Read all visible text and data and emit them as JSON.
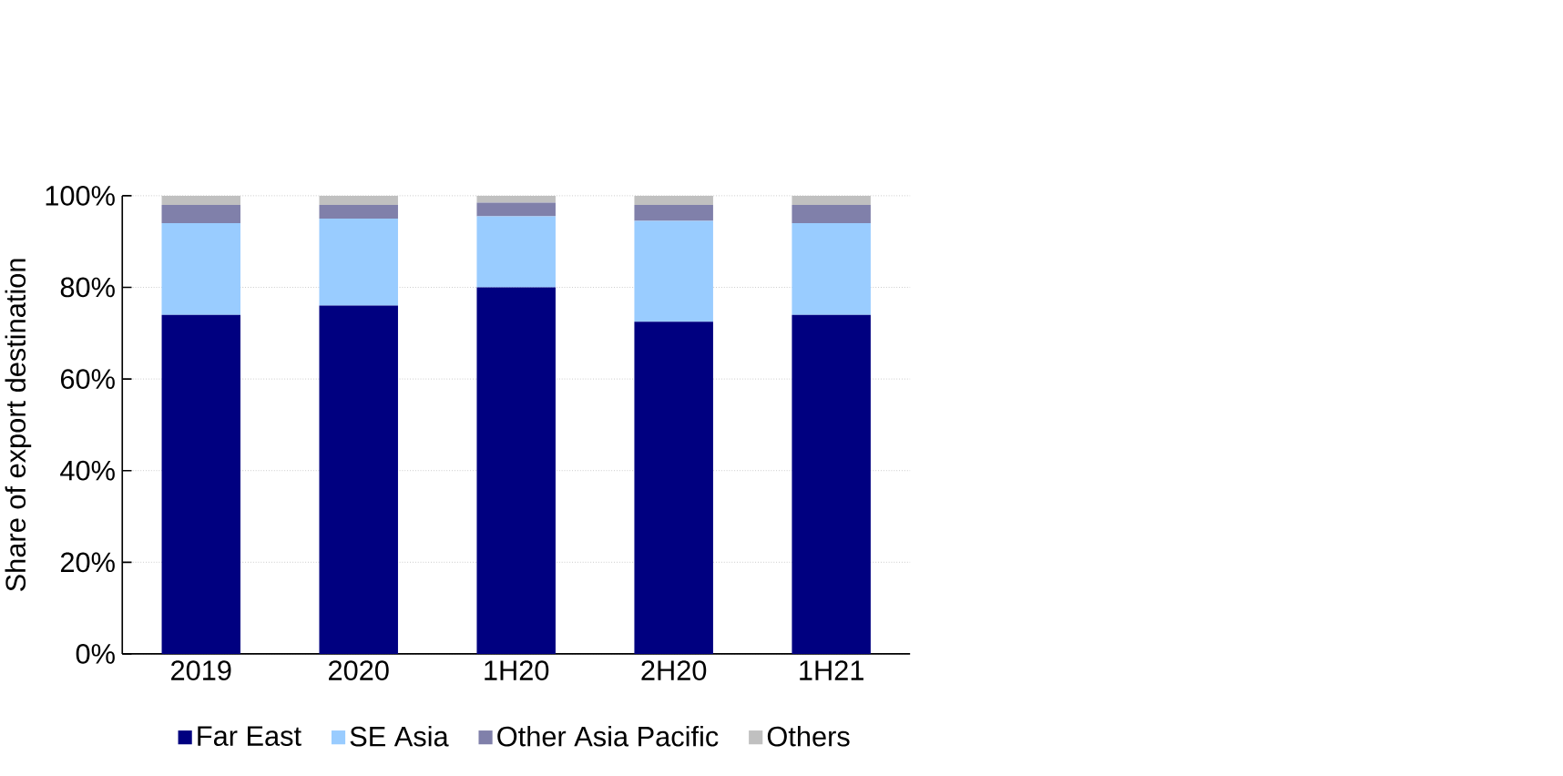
{
  "chart_data": {
    "type": "bar",
    "stacked": true,
    "ylabel": "Share of export destination",
    "categories": [
      "2019",
      "2020",
      "1H20",
      "2H20",
      "1H21"
    ],
    "series": [
      {
        "name": "Far East",
        "color": "#000080",
        "values": [
          74,
          76,
          80,
          72.5,
          74
        ]
      },
      {
        "name": "SE Asia",
        "color": "#99ccff",
        "values": [
          20,
          19,
          15.5,
          22,
          20
        ]
      },
      {
        "name": "Other Asia Pacific",
        "color": "#8080aa",
        "values": [
          4,
          3,
          3,
          3.5,
          4
        ]
      },
      {
        "name": "Others",
        "color": "#c0c0c0",
        "values": [
          2,
          2,
          1.5,
          2,
          2
        ]
      }
    ],
    "ylim": [
      0,
      100
    ],
    "yticks": [
      {
        "value": 0,
        "label": "0%"
      },
      {
        "value": 20,
        "label": "20%"
      },
      {
        "value": 40,
        "label": "40%"
      },
      {
        "value": 60,
        "label": "60%"
      },
      {
        "value": 80,
        "label": "80%"
      },
      {
        "value": 100,
        "label": "100%"
      }
    ],
    "grid": "y",
    "legend": "bottom"
  }
}
